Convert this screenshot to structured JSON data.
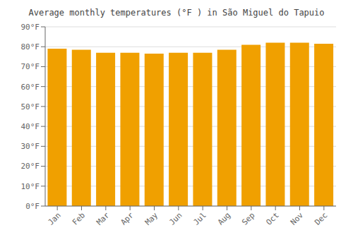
{
  "chart_data": {
    "type": "bar",
    "title": "Average monthly temperatures (°F ) in São Miguel do Tapuio",
    "categories": [
      "Jan",
      "Feb",
      "Mar",
      "Apr",
      "May",
      "Jun",
      "Jul",
      "Aug",
      "Sep",
      "Oct",
      "Nov",
      "Dec"
    ],
    "values": [
      79,
      78.5,
      77,
      77,
      76.5,
      77,
      77,
      78.5,
      81,
      82,
      82,
      81.5
    ],
    "color": "#F0A000",
    "ylim": [
      0,
      90
    ],
    "yticks": [
      {
        "value": 0,
        "label": "0°F"
      },
      {
        "value": 10,
        "label": "10°F"
      },
      {
        "value": 20,
        "label": "20°F"
      },
      {
        "value": 30,
        "label": "30°F"
      },
      {
        "value": 40,
        "label": "40°F"
      },
      {
        "value": 50,
        "label": "50°F"
      },
      {
        "value": 60,
        "label": "60°F"
      },
      {
        "value": 70,
        "label": "70°F"
      },
      {
        "value": 80,
        "label": "80°F"
      },
      {
        "value": 90,
        "label": "90°F"
      }
    ],
    "grid": true
  }
}
